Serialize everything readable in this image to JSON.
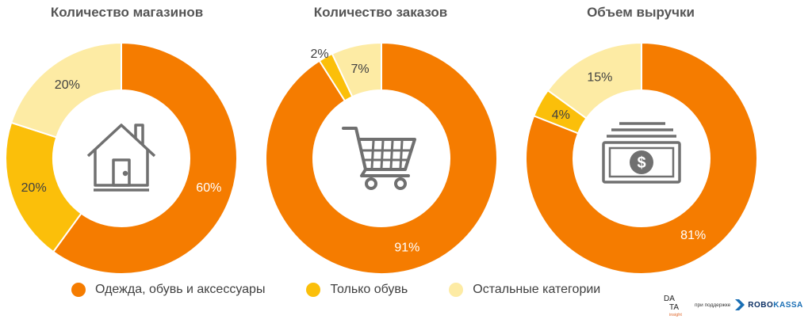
{
  "colors": {
    "clothing": "#f57c00",
    "shoes": "#fbbf0a",
    "other": "#fdeba4",
    "icon": "#707070"
  },
  "chart_data": [
    {
      "type": "pie",
      "title": "Количество магазинов",
      "icon": "house-icon",
      "categories": [
        "Одежда, обувь и аксессуары",
        "Только обувь",
        "Остальные категории"
      ],
      "values": [
        60,
        20,
        20
      ],
      "labels": [
        "60%",
        "20%",
        "20%"
      ]
    },
    {
      "type": "pie",
      "title": "Количество заказов",
      "icon": "shopping-cart-icon",
      "categories": [
        "Одежда, обувь и аксессуары",
        "Только обувь",
        "Остальные категории"
      ],
      "values": [
        91,
        2,
        7
      ],
      "labels": [
        "91%",
        "2%",
        "7%"
      ]
    },
    {
      "type": "pie",
      "title": "Объем выручки",
      "icon": "money-banknote-icon",
      "categories": [
        "Одежда, обувь и аксессуары",
        "Только обувь",
        "Остальные категории"
      ],
      "values": [
        81,
        4,
        15
      ],
      "labels": [
        "81%",
        "4%",
        "15%"
      ]
    }
  ],
  "legend": {
    "items": [
      {
        "label": "Одежда, обувь и аксессуары",
        "color": "#f57c00"
      },
      {
        "label": "Только обувь",
        "color": "#fbbf0a"
      },
      {
        "label": "Остальные категории",
        "color": "#fdeba4"
      }
    ],
    "position": "bottom"
  },
  "branding": {
    "data_logo_top": "DA",
    "data_logo_bottom": "TA",
    "data_logo_sub": "insight",
    "support_text": "при поддержке",
    "robokassa_a": "ROBO",
    "robokassa_b": "KASSA"
  }
}
